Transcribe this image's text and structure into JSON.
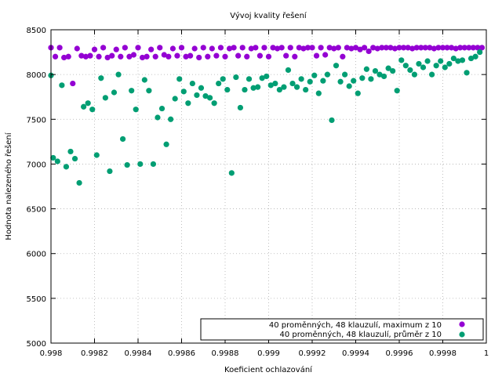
{
  "chart_data": {
    "type": "scatter",
    "title": "Vývoj kvality řešení",
    "xlabel": "Koeficient ochlazování",
    "ylabel": "Hodnota nalezeného řešení",
    "xlim": [
      0.998,
      1.0
    ],
    "ylim": [
      5000,
      8500
    ],
    "grid": true,
    "legend_position": "bottom-right",
    "x_ticks": [
      {
        "value": 0.998,
        "label": "0.998"
      },
      {
        "value": 0.9982,
        "label": "0.9982"
      },
      {
        "value": 0.9984,
        "label": "0.9984"
      },
      {
        "value": 0.9986,
        "label": "0.9986"
      },
      {
        "value": 0.9988,
        "label": "0.9988"
      },
      {
        "value": 0.999,
        "label": "0.999"
      },
      {
        "value": 0.9992,
        "label": "0.9992"
      },
      {
        "value": 0.9994,
        "label": "0.9994"
      },
      {
        "value": 0.9996,
        "label": "0.9996"
      },
      {
        "value": 0.9998,
        "label": "0.9998"
      },
      {
        "value": 1.0,
        "label": "1"
      }
    ],
    "y_ticks": [
      {
        "value": 5000,
        "label": "5000"
      },
      {
        "value": 5500,
        "label": "5500"
      },
      {
        "value": 6000,
        "label": "6000"
      },
      {
        "value": 6500,
        "label": "6500"
      },
      {
        "value": 7000,
        "label": "7000"
      },
      {
        "value": 7500,
        "label": "7500"
      },
      {
        "value": 8000,
        "label": "8000"
      },
      {
        "value": 8500,
        "label": "8500"
      }
    ],
    "series": [
      {
        "name": "40 proměnných, 48 klauzulí, maximum z 10",
        "color": "#9400d3",
        "points": [
          [
            0.998,
            8300
          ],
          [
            0.99802,
            8200
          ],
          [
            0.99804,
            8300
          ],
          [
            0.99806,
            8190
          ],
          [
            0.99808,
            8200
          ],
          [
            0.9981,
            7900
          ],
          [
            0.99812,
            8290
          ],
          [
            0.99814,
            8210
          ],
          [
            0.99816,
            8200
          ],
          [
            0.99818,
            8210
          ],
          [
            0.9982,
            8280
          ],
          [
            0.99822,
            8200
          ],
          [
            0.99824,
            8300
          ],
          [
            0.99826,
            8190
          ],
          [
            0.99828,
            8210
          ],
          [
            0.9983,
            8280
          ],
          [
            0.99832,
            8200
          ],
          [
            0.99834,
            8300
          ],
          [
            0.99836,
            8200
          ],
          [
            0.99838,
            8220
          ],
          [
            0.9984,
            8300
          ],
          [
            0.99842,
            8190
          ],
          [
            0.99844,
            8200
          ],
          [
            0.99846,
            8280
          ],
          [
            0.99848,
            8200
          ],
          [
            0.9985,
            8300
          ],
          [
            0.99852,
            8220
          ],
          [
            0.99854,
            8200
          ],
          [
            0.99856,
            8290
          ],
          [
            0.99858,
            8210
          ],
          [
            0.9986,
            8300
          ],
          [
            0.99862,
            8200
          ],
          [
            0.99864,
            8210
          ],
          [
            0.99866,
            8290
          ],
          [
            0.99868,
            8190
          ],
          [
            0.9987,
            8300
          ],
          [
            0.99872,
            8200
          ],
          [
            0.99874,
            8290
          ],
          [
            0.99876,
            8210
          ],
          [
            0.99878,
            8300
          ],
          [
            0.9988,
            8200
          ],
          [
            0.99882,
            8290
          ],
          [
            0.99884,
            8300
          ],
          [
            0.99886,
            8210
          ],
          [
            0.99888,
            8300
          ],
          [
            0.9989,
            8200
          ],
          [
            0.99892,
            8290
          ],
          [
            0.99894,
            8300
          ],
          [
            0.99896,
            8210
          ],
          [
            0.99898,
            8300
          ],
          [
            0.999,
            8200
          ],
          [
            0.99902,
            8300
          ],
          [
            0.99904,
            8290
          ],
          [
            0.99906,
            8300
          ],
          [
            0.99908,
            8210
          ],
          [
            0.9991,
            8300
          ],
          [
            0.99912,
            8200
          ],
          [
            0.99914,
            8300
          ],
          [
            0.99916,
            8290
          ],
          [
            0.99918,
            8300
          ],
          [
            0.9992,
            8300
          ],
          [
            0.99922,
            8210
          ],
          [
            0.99924,
            8300
          ],
          [
            0.99926,
            8220
          ],
          [
            0.99928,
            8300
          ],
          [
            0.9993,
            8290
          ],
          [
            0.99932,
            8300
          ],
          [
            0.99934,
            8200
          ],
          [
            0.99936,
            8300
          ],
          [
            0.99938,
            8290
          ],
          [
            0.9994,
            8300
          ],
          [
            0.99942,
            8280
          ],
          [
            0.99944,
            8300
          ],
          [
            0.99946,
            8260
          ],
          [
            0.99948,
            8300
          ],
          [
            0.9995,
            8290
          ],
          [
            0.99952,
            8300
          ],
          [
            0.99954,
            8300
          ],
          [
            0.99956,
            8300
          ],
          [
            0.99958,
            8290
          ],
          [
            0.9996,
            8300
          ],
          [
            0.99962,
            8300
          ],
          [
            0.99964,
            8300
          ],
          [
            0.99966,
            8290
          ],
          [
            0.99968,
            8300
          ],
          [
            0.9997,
            8300
          ],
          [
            0.99972,
            8300
          ],
          [
            0.99974,
            8300
          ],
          [
            0.99976,
            8290
          ],
          [
            0.99978,
            8300
          ],
          [
            0.9998,
            8300
          ],
          [
            0.99982,
            8300
          ],
          [
            0.99984,
            8300
          ],
          [
            0.99986,
            8290
          ],
          [
            0.99988,
            8300
          ],
          [
            0.9999,
            8300
          ],
          [
            0.99992,
            8300
          ],
          [
            0.99994,
            8300
          ],
          [
            0.99996,
            8300
          ],
          [
            0.99998,
            8300
          ]
        ]
      },
      {
        "name": "40 proměnných, 48 klauzulí, průměr z 10",
        "color": "#009e73",
        "points": [
          [
            0.998,
            7990
          ],
          [
            0.99801,
            7070
          ],
          [
            0.99803,
            7030
          ],
          [
            0.99805,
            7880
          ],
          [
            0.99807,
            6970
          ],
          [
            0.99809,
            7140
          ],
          [
            0.99811,
            7060
          ],
          [
            0.99813,
            6790
          ],
          [
            0.99815,
            7640
          ],
          [
            0.99817,
            7680
          ],
          [
            0.99819,
            7610
          ],
          [
            0.99821,
            7100
          ],
          [
            0.99823,
            7960
          ],
          [
            0.99825,
            7740
          ],
          [
            0.99827,
            6920
          ],
          [
            0.99829,
            7800
          ],
          [
            0.99831,
            8000
          ],
          [
            0.99833,
            7280
          ],
          [
            0.99835,
            6990
          ],
          [
            0.99837,
            7820
          ],
          [
            0.99839,
            7610
          ],
          [
            0.99841,
            7000
          ],
          [
            0.99843,
            7940
          ],
          [
            0.99845,
            7820
          ],
          [
            0.99847,
            7000
          ],
          [
            0.99849,
            7520
          ],
          [
            0.99851,
            7620
          ],
          [
            0.99853,
            7220
          ],
          [
            0.99855,
            7500
          ],
          [
            0.99857,
            7730
          ],
          [
            0.99859,
            7950
          ],
          [
            0.99861,
            7810
          ],
          [
            0.99863,
            7680
          ],
          [
            0.99865,
            7900
          ],
          [
            0.99867,
            7770
          ],
          [
            0.99869,
            7850
          ],
          [
            0.99871,
            7760
          ],
          [
            0.99873,
            7740
          ],
          [
            0.99875,
            7680
          ],
          [
            0.99877,
            7900
          ],
          [
            0.99879,
            7950
          ],
          [
            0.99881,
            7830
          ],
          [
            0.99883,
            6900
          ],
          [
            0.99885,
            7970
          ],
          [
            0.99887,
            7630
          ],
          [
            0.99889,
            7830
          ],
          [
            0.99891,
            7950
          ],
          [
            0.99893,
            7850
          ],
          [
            0.99895,
            7860
          ],
          [
            0.99897,
            7960
          ],
          [
            0.99899,
            7980
          ],
          [
            0.99901,
            7880
          ],
          [
            0.99903,
            7900
          ],
          [
            0.99905,
            7830
          ],
          [
            0.99907,
            7860
          ],
          [
            0.99909,
            8050
          ],
          [
            0.99911,
            7900
          ],
          [
            0.99913,
            7860
          ],
          [
            0.99915,
            7950
          ],
          [
            0.99917,
            7830
          ],
          [
            0.99919,
            7920
          ],
          [
            0.99921,
            7990
          ],
          [
            0.99923,
            7790
          ],
          [
            0.99925,
            7930
          ],
          [
            0.99927,
            8000
          ],
          [
            0.99929,
            7490
          ],
          [
            0.99931,
            8100
          ],
          [
            0.99933,
            7920
          ],
          [
            0.99935,
            8000
          ],
          [
            0.99937,
            7870
          ],
          [
            0.99939,
            7930
          ],
          [
            0.99941,
            7790
          ],
          [
            0.99943,
            7960
          ],
          [
            0.99945,
            8060
          ],
          [
            0.99947,
            7950
          ],
          [
            0.99949,
            8040
          ],
          [
            0.99951,
            8000
          ],
          [
            0.99953,
            7980
          ],
          [
            0.99955,
            8070
          ],
          [
            0.99957,
            8040
          ],
          [
            0.99959,
            7820
          ],
          [
            0.99961,
            8160
          ],
          [
            0.99963,
            8100
          ],
          [
            0.99965,
            8050
          ],
          [
            0.99967,
            8000
          ],
          [
            0.99969,
            8120
          ],
          [
            0.99971,
            8080
          ],
          [
            0.99973,
            8150
          ],
          [
            0.99975,
            8000
          ],
          [
            0.99977,
            8100
          ],
          [
            0.99979,
            8150
          ],
          [
            0.99981,
            8080
          ],
          [
            0.99983,
            8120
          ],
          [
            0.99985,
            8180
          ],
          [
            0.99987,
            8150
          ],
          [
            0.99989,
            8160
          ],
          [
            0.99991,
            8020
          ],
          [
            0.99993,
            8180
          ],
          [
            0.99995,
            8200
          ],
          [
            0.99997,
            8250
          ]
        ]
      }
    ]
  }
}
